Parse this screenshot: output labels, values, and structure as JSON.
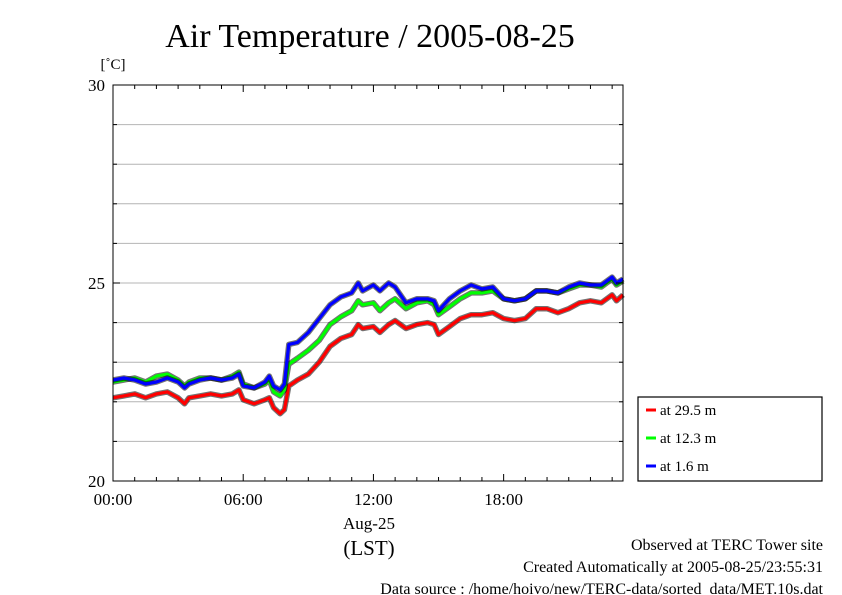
{
  "chart_data": {
    "type": "line",
    "title": "Air Temperature / 2005-08-25",
    "ylabel": "[˚C]",
    "xlabel": "(LST)",
    "date_label": "Aug-25",
    "ylim": [
      20,
      30
    ],
    "xlim_hours": [
      0,
      23.5
    ],
    "y_ticks": [
      {
        "value": 30,
        "label": "30"
      },
      {
        "value": 25,
        "label": "25"
      },
      {
        "value": 20,
        "label": "20"
      }
    ],
    "x_ticks": [
      {
        "value": 0,
        "label": "00:00"
      },
      {
        "value": 6,
        "label": "06:00"
      },
      {
        "value": 12,
        "label": "12:00"
      },
      {
        "value": 18,
        "label": "18:00"
      }
    ],
    "grid": true,
    "legend_position": "right-bottom",
    "series": [
      {
        "name": "at 29.5 m",
        "color": "#ff0000",
        "points": [
          [
            0.0,
            22.1
          ],
          [
            0.5,
            22.15
          ],
          [
            1.0,
            22.2
          ],
          [
            1.5,
            22.1
          ],
          [
            2.0,
            22.2
          ],
          [
            2.5,
            22.25
          ],
          [
            3.0,
            22.1
          ],
          [
            3.3,
            21.95
          ],
          [
            3.5,
            22.1
          ],
          [
            4.0,
            22.15
          ],
          [
            4.5,
            22.2
          ],
          [
            5.0,
            22.15
          ],
          [
            5.5,
            22.2
          ],
          [
            5.8,
            22.3
          ],
          [
            6.0,
            22.05
          ],
          [
            6.5,
            21.95
          ],
          [
            7.0,
            22.05
          ],
          [
            7.2,
            22.1
          ],
          [
            7.4,
            21.85
          ],
          [
            7.7,
            21.7
          ],
          [
            7.9,
            21.8
          ],
          [
            8.1,
            22.4
          ],
          [
            8.5,
            22.55
          ],
          [
            9.0,
            22.7
          ],
          [
            9.5,
            23.0
          ],
          [
            10.0,
            23.4
          ],
          [
            10.5,
            23.6
          ],
          [
            11.0,
            23.7
          ],
          [
            11.3,
            23.95
          ],
          [
            11.5,
            23.85
          ],
          [
            12.0,
            23.9
          ],
          [
            12.3,
            23.75
          ],
          [
            12.7,
            23.95
          ],
          [
            13.0,
            24.05
          ],
          [
            13.5,
            23.85
          ],
          [
            14.0,
            23.95
          ],
          [
            14.5,
            24.0
          ],
          [
            14.8,
            23.95
          ],
          [
            15.0,
            23.7
          ],
          [
            15.5,
            23.9
          ],
          [
            16.0,
            24.1
          ],
          [
            16.5,
            24.2
          ],
          [
            17.0,
            24.2
          ],
          [
            17.5,
            24.25
          ],
          [
            18.0,
            24.1
          ],
          [
            18.5,
            24.05
          ],
          [
            19.0,
            24.1
          ],
          [
            19.5,
            24.35
          ],
          [
            20.0,
            24.35
          ],
          [
            20.5,
            24.25
          ],
          [
            21.0,
            24.35
          ],
          [
            21.5,
            24.5
          ],
          [
            22.0,
            24.55
          ],
          [
            22.5,
            24.5
          ],
          [
            23.0,
            24.7
          ],
          [
            23.2,
            24.55
          ],
          [
            23.5,
            24.7
          ]
        ]
      },
      {
        "name": "at 12.3 m",
        "color": "#00ff00",
        "points": [
          [
            0.0,
            22.5
          ],
          [
            0.5,
            22.55
          ],
          [
            1.0,
            22.6
          ],
          [
            1.5,
            22.5
          ],
          [
            2.0,
            22.65
          ],
          [
            2.5,
            22.7
          ],
          [
            3.0,
            22.55
          ],
          [
            3.3,
            22.4
          ],
          [
            3.5,
            22.5
          ],
          [
            4.0,
            22.6
          ],
          [
            4.5,
            22.6
          ],
          [
            5.0,
            22.55
          ],
          [
            5.5,
            22.65
          ],
          [
            5.8,
            22.75
          ],
          [
            6.0,
            22.45
          ],
          [
            6.5,
            22.35
          ],
          [
            7.0,
            22.45
          ],
          [
            7.2,
            22.55
          ],
          [
            7.4,
            22.25
          ],
          [
            7.7,
            22.15
          ],
          [
            7.9,
            22.3
          ],
          [
            8.1,
            22.95
          ],
          [
            8.5,
            23.1
          ],
          [
            9.0,
            23.3
          ],
          [
            9.5,
            23.55
          ],
          [
            10.0,
            23.95
          ],
          [
            10.5,
            24.15
          ],
          [
            11.0,
            24.3
          ],
          [
            11.3,
            24.55
          ],
          [
            11.5,
            24.45
          ],
          [
            12.0,
            24.5
          ],
          [
            12.3,
            24.3
          ],
          [
            12.7,
            24.5
          ],
          [
            13.0,
            24.6
          ],
          [
            13.5,
            24.35
          ],
          [
            14.0,
            24.5
          ],
          [
            14.5,
            24.55
          ],
          [
            14.8,
            24.45
          ],
          [
            15.0,
            24.2
          ],
          [
            15.5,
            24.4
          ],
          [
            16.0,
            24.6
          ],
          [
            16.5,
            24.75
          ],
          [
            17.0,
            24.75
          ],
          [
            17.5,
            24.8
          ],
          [
            18.0,
            24.6
          ],
          [
            18.5,
            24.55
          ],
          [
            19.0,
            24.6
          ],
          [
            19.5,
            24.8
          ],
          [
            20.0,
            24.8
          ],
          [
            20.5,
            24.75
          ],
          [
            21.0,
            24.85
          ],
          [
            21.5,
            24.95
          ],
          [
            22.0,
            24.95
          ],
          [
            22.5,
            24.9
          ],
          [
            23.0,
            25.1
          ],
          [
            23.2,
            24.95
          ],
          [
            23.5,
            25.05
          ]
        ]
      },
      {
        "name": "at 1.6 m",
        "color": "#0000ff",
        "points": [
          [
            0.0,
            22.55
          ],
          [
            0.5,
            22.6
          ],
          [
            1.0,
            22.55
          ],
          [
            1.5,
            22.45
          ],
          [
            2.0,
            22.5
          ],
          [
            2.5,
            22.6
          ],
          [
            3.0,
            22.5
          ],
          [
            3.3,
            22.35
          ],
          [
            3.5,
            22.45
          ],
          [
            4.0,
            22.55
          ],
          [
            4.5,
            22.6
          ],
          [
            5.0,
            22.55
          ],
          [
            5.5,
            22.6
          ],
          [
            5.8,
            22.7
          ],
          [
            6.0,
            22.4
          ],
          [
            6.5,
            22.35
          ],
          [
            7.0,
            22.5
          ],
          [
            7.2,
            22.65
          ],
          [
            7.4,
            22.4
          ],
          [
            7.7,
            22.3
          ],
          [
            7.9,
            22.45
          ],
          [
            8.1,
            23.45
          ],
          [
            8.5,
            23.5
          ],
          [
            9.0,
            23.75
          ],
          [
            9.5,
            24.1
          ],
          [
            10.0,
            24.45
          ],
          [
            10.5,
            24.65
          ],
          [
            11.0,
            24.75
          ],
          [
            11.3,
            25.0
          ],
          [
            11.5,
            24.8
          ],
          [
            12.0,
            24.95
          ],
          [
            12.3,
            24.8
          ],
          [
            12.7,
            25.0
          ],
          [
            13.0,
            24.9
          ],
          [
            13.5,
            24.5
          ],
          [
            14.0,
            24.6
          ],
          [
            14.5,
            24.6
          ],
          [
            14.8,
            24.55
          ],
          [
            15.0,
            24.3
          ],
          [
            15.5,
            24.6
          ],
          [
            16.0,
            24.8
          ],
          [
            16.5,
            24.95
          ],
          [
            17.0,
            24.85
          ],
          [
            17.5,
            24.9
          ],
          [
            18.0,
            24.6
          ],
          [
            18.5,
            24.55
          ],
          [
            19.0,
            24.6
          ],
          [
            19.5,
            24.8
          ],
          [
            20.0,
            24.8
          ],
          [
            20.5,
            24.75
          ],
          [
            21.0,
            24.9
          ],
          [
            21.5,
            25.0
          ],
          [
            22.0,
            24.95
          ],
          [
            22.5,
            24.95
          ],
          [
            23.0,
            25.15
          ],
          [
            23.2,
            25.0
          ],
          [
            23.5,
            25.1
          ]
        ]
      }
    ]
  },
  "footer": {
    "line1": "Observed at TERC Tower site",
    "line2": "Created Automatically at 2005-08-25/23:55:31",
    "line3": "Data source : /home/hoivo/new/TERC-data/sorted_data/MET.10s.dat"
  }
}
